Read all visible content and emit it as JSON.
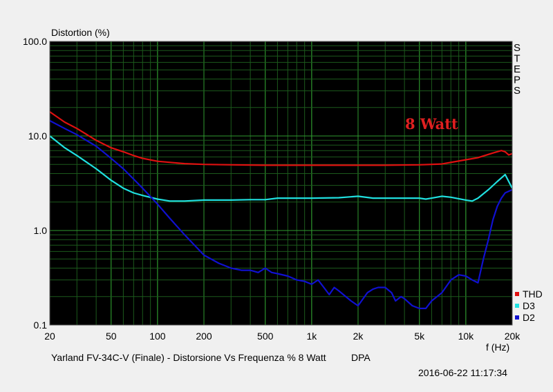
{
  "chart_data": {
    "type": "line",
    "ylabel": "Distortion (%)",
    "xlabel": "f (Hz)",
    "side_label": "STEPS",
    "annotation": "8 Watt",
    "footer_title": "Yarland FV-34C-V (Finale) - Distorsione Vs Frequenza % 8 Watt",
    "footer_tag": "DPA",
    "timestamp": "2016-06-22 11:17:34",
    "x_scale": "log",
    "y_scale": "log",
    "xlim": [
      20,
      20000
    ],
    "ylim": [
      0.1,
      100
    ],
    "grid": true,
    "legend_position": "bottom-right",
    "x_ticks": [
      {
        "value": 20,
        "label": "20"
      },
      {
        "value": 50,
        "label": "50"
      },
      {
        "value": 100,
        "label": "100"
      },
      {
        "value": 200,
        "label": "200"
      },
      {
        "value": 500,
        "label": "500"
      },
      {
        "value": 1000,
        "label": "1k"
      },
      {
        "value": 2000,
        "label": "2k"
      },
      {
        "value": 5000,
        "label": "5k"
      },
      {
        "value": 10000,
        "label": "10k"
      },
      {
        "value": 20000,
        "label": "20k"
      }
    ],
    "y_ticks": [
      {
        "value": 100,
        "label": "100.0"
      },
      {
        "value": 10,
        "label": "10.0"
      },
      {
        "value": 1,
        "label": "1.0"
      },
      {
        "value": 0.1,
        "label": "0.1"
      }
    ],
    "series": [
      {
        "name": "THD",
        "color": "#e01010",
        "x": [
          20,
          25,
          30,
          40,
          50,
          60,
          70,
          80,
          100,
          150,
          200,
          300,
          500,
          1000,
          2000,
          3000,
          5000,
          7000,
          10000,
          12000,
          15000,
          17000,
          18000,
          19000,
          20000
        ],
        "y": [
          18,
          14,
          12,
          9,
          7.5,
          6.8,
          6.2,
          5.8,
          5.4,
          5.1,
          5.0,
          4.95,
          4.9,
          4.9,
          4.9,
          4.9,
          4.95,
          5.05,
          5.6,
          5.9,
          6.6,
          7.0,
          6.8,
          6.3,
          6.5
        ]
      },
      {
        "name": "D3",
        "color": "#20e0e0",
        "x": [
          20,
          25,
          30,
          40,
          50,
          60,
          70,
          80,
          100,
          120,
          150,
          200,
          300,
          400,
          500,
          600,
          1000,
          1500,
          2000,
          2500,
          3000,
          5000,
          5500,
          6000,
          7000,
          8000,
          10000,
          11000,
          12000,
          14000,
          16000,
          18000,
          20000
        ],
        "y": [
          10,
          7.5,
          6.2,
          4.5,
          3.4,
          2.8,
          2.5,
          2.35,
          2.15,
          2.05,
          2.05,
          2.1,
          2.1,
          2.12,
          2.12,
          2.2,
          2.2,
          2.22,
          2.3,
          2.2,
          2.2,
          2.2,
          2.15,
          2.2,
          2.3,
          2.25,
          2.1,
          2.05,
          2.2,
          2.7,
          3.3,
          3.9,
          2.8
        ]
      },
      {
        "name": "D2",
        "color": "#1010d0",
        "x": [
          20,
          25,
          30,
          40,
          50,
          60,
          70,
          80,
          100,
          120,
          150,
          200,
          250,
          300,
          350,
          400,
          450,
          500,
          550,
          600,
          700,
          800,
          900,
          1000,
          1100,
          1200,
          1300,
          1400,
          1500,
          1800,
          2000,
          2300,
          2500,
          2700,
          3000,
          3300,
          3500,
          3800,
          4000,
          4500,
          5000,
          5500,
          6000,
          7000,
          8000,
          9000,
          10000,
          11000,
          12000,
          13000,
          14000,
          15000,
          16000,
          17000,
          18000,
          19000,
          20000
        ],
        "y": [
          14.5,
          12,
          10.3,
          7.8,
          5.8,
          4.5,
          3.5,
          2.8,
          1.9,
          1.35,
          0.9,
          0.55,
          0.45,
          0.4,
          0.38,
          0.38,
          0.36,
          0.4,
          0.36,
          0.35,
          0.33,
          0.3,
          0.29,
          0.27,
          0.3,
          0.25,
          0.21,
          0.25,
          0.23,
          0.18,
          0.16,
          0.22,
          0.24,
          0.25,
          0.25,
          0.22,
          0.18,
          0.2,
          0.19,
          0.16,
          0.15,
          0.15,
          0.18,
          0.22,
          0.3,
          0.34,
          0.33,
          0.3,
          0.28,
          0.5,
          0.8,
          1.3,
          1.8,
          2.2,
          2.5,
          2.6,
          2.7
        ]
      }
    ]
  }
}
